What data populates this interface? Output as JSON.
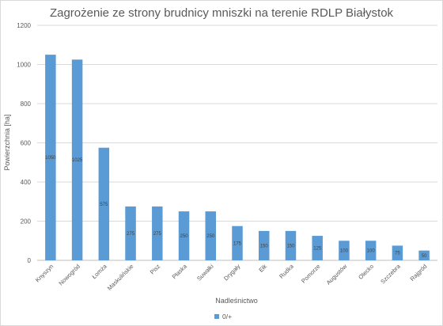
{
  "chart_data": {
    "type": "bar",
    "title": "Zagrożenie ze strony brudnicy mniszki na terenie RDLP Białystok",
    "xlabel": "Nadleśnictwo",
    "ylabel": "Powierzchnia [ha]",
    "ylim": [
      0,
      1200
    ],
    "yticks": [
      0,
      200,
      400,
      600,
      800,
      1000,
      1200
    ],
    "grid": true,
    "legend": "bottom",
    "categories": [
      "Knyszyn",
      "Nowogród",
      "Łomża",
      "Maskulińskie",
      "Pisz",
      "Płaska",
      "Suwałki",
      "Drygały",
      "Ełk",
      "Rudka",
      "Pomorze",
      "Augustów",
      "Olecko",
      "Szczebra",
      "Rajgród"
    ],
    "series": [
      {
        "name": "0/+",
        "color": "#5b9bd5",
        "values": [
          1050,
          1025,
          575,
          275,
          275,
          250,
          250,
          175,
          150,
          150,
          125,
          100,
          100,
          75,
          50
        ]
      }
    ]
  }
}
